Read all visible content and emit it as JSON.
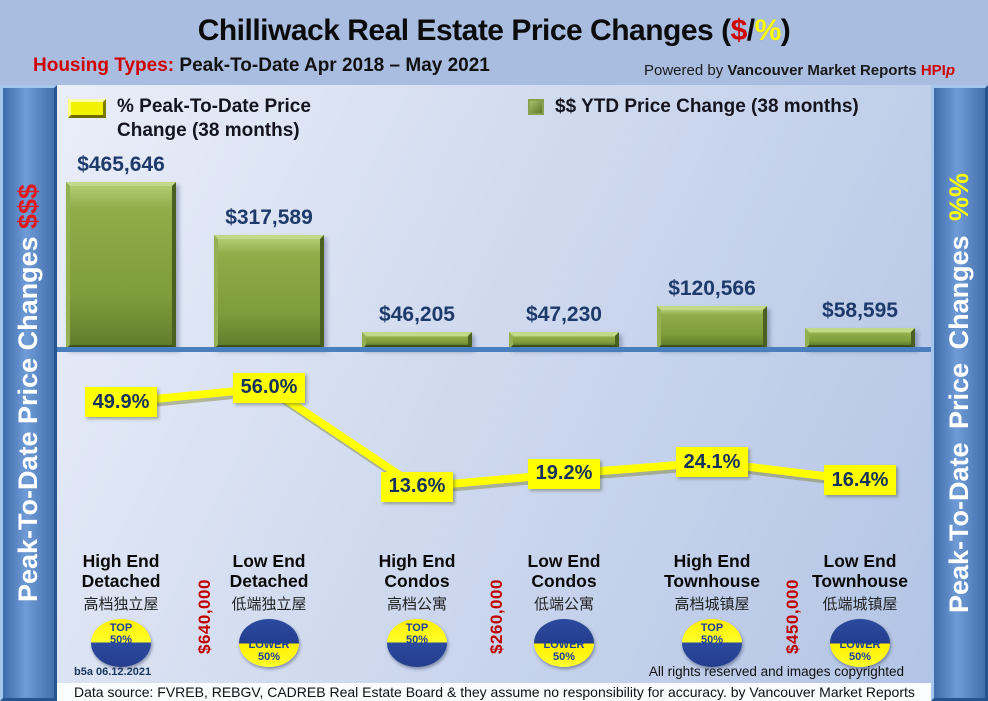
{
  "title": {
    "prefix": "Chilliwack Real Estate Price Changes (",
    "dollar": "$",
    "slash": "/",
    "percent": "%",
    "suffix": ")"
  },
  "subtitle": {
    "label": "Housing Types:",
    "text": "Peak-To-Date Apr 2018 – May 2021"
  },
  "powered_by": {
    "prefix": "Powered by",
    "brand": "Vancouver Market Reports",
    "hpi": "HPI",
    "hpi_suffix": "p"
  },
  "legend": {
    "pct_line1": "% Peak-To-Date Price",
    "pct_line2": "Change (38 months)",
    "dollars": "$$ YTD Price Change (38 months)"
  },
  "sidebars": {
    "left": {
      "text": "Peak-To-Date Price Changes",
      "suffix": "$$$"
    },
    "right": {
      "text": "Peak-To-Date Price Changes",
      "suffix": "%%"
    }
  },
  "chart_data": {
    "type": "combo",
    "title": "Chilliwack Real Estate Price Changes ($/%)",
    "subtitle": "Housing Types: Peak-To-Date Apr 2018 – May 2021",
    "categories": [
      "High End Detached",
      "Low End Detached",
      "High End Condos",
      "Low End Condos",
      "High End Townhouse",
      "Low End Townhouse"
    ],
    "categories_chinese": [
      "高档独立屋",
      "低端独立屋",
      "高档公寓",
      "低端公寓",
      "高档城镇屋",
      "低端城镇屋"
    ],
    "series": [
      {
        "name": "$$ YTD Price Change (38 months)",
        "type": "bar",
        "color": "#7d9c3a",
        "values": [
          465646,
          317589,
          46205,
          47230,
          120566,
          58595
        ],
        "labels": [
          "$465,646",
          "$317,589",
          "$46,205",
          "$47,230",
          "$120,566",
          "$58,595"
        ]
      },
      {
        "name": "% Peak-To-Date Price Change (38 months)",
        "type": "line",
        "color": "#ffff00",
        "values": [
          49.9,
          56.0,
          13.6,
          19.2,
          24.1,
          16.4
        ],
        "labels": [
          "49.9%",
          "56.0%",
          "13.6%",
          "19.2%",
          "24.1%",
          "16.4%"
        ]
      }
    ],
    "benchmark_prices": [
      "$640,000",
      "$260,000",
      "$450,000"
    ],
    "legend_position": "top",
    "axes_hidden": true
  },
  "columns": [
    {
      "line1": "High End",
      "line2": "Detached",
      "chinese": "高档独立屋",
      "badge": {
        "line1": "TOP",
        "line2": "50%"
      }
    },
    {
      "line1": "Low End",
      "line2": "Detached",
      "chinese": "低端独立屋",
      "badge": {
        "line1": "LOWER",
        "line2": "50%"
      }
    },
    {
      "line1": "High End",
      "line2": "Condos",
      "chinese": "高档公寓",
      "badge": {
        "line1": "TOP",
        "line2": "50%"
      }
    },
    {
      "line1": "Low End",
      "line2": "Condos",
      "chinese": "低端公寓",
      "badge": {
        "line1": "LOWER",
        "line2": "50%"
      }
    },
    {
      "line1": "High End",
      "line2": "Townhouse",
      "chinese": "高档城镇屋",
      "badge": {
        "line1": "TOP",
        "line2": "50%"
      }
    },
    {
      "line1": "Low End",
      "line2": "Townhouse",
      "chinese": "低端城镇屋",
      "badge": {
        "line1": "LOWER",
        "line2": "50%"
      }
    }
  ],
  "separators": [
    "$640,000",
    "$260,000",
    "$450,000"
  ],
  "footer": {
    "version": "b5a 06.12.2021",
    "rights": "All rights reserved and  images copyrighted",
    "source": "Data source: FVREB, REBGV, CADREB Real Estate Board & they assume no responsibility for accuracy. by Vancouver Market Reports"
  },
  "colors": {
    "accent_red": "#d00000",
    "accent_yellow": "#ffff00",
    "bar_green": "#7d9c3a",
    "navy": "#1e3a6b",
    "baseline_blue": "#4a7ebd",
    "sidebar_blue": "#5b88c7"
  }
}
